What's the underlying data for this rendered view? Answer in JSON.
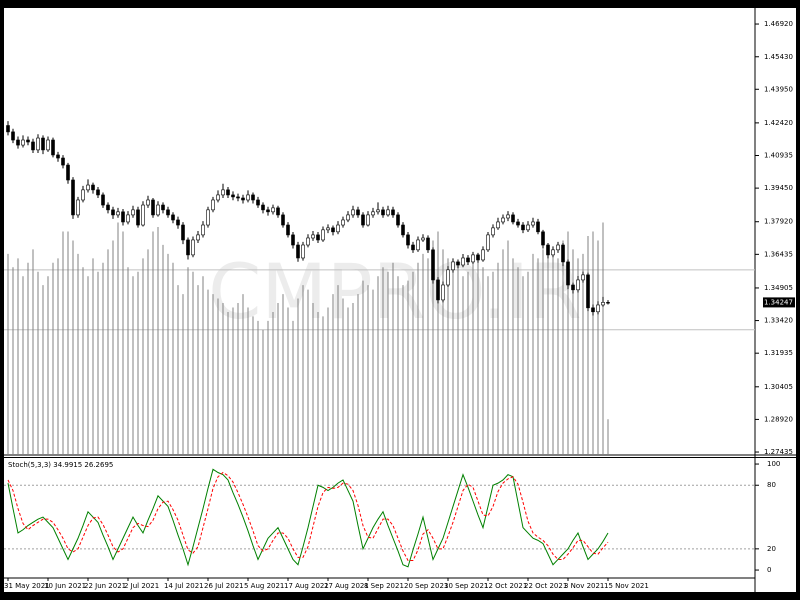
{
  "chart_data": [
    {
      "type": "candlestick",
      "watermark": "CMPRO.IR",
      "categories": [
        "31 May 2021",
        null,
        null,
        null,
        null,
        null,
        null,
        null,
        "10 Jun 2021",
        null,
        null,
        null,
        null,
        null,
        null,
        null,
        "22 Jun 2021",
        null,
        null,
        null,
        null,
        null,
        null,
        null,
        "2 Jul 2021",
        null,
        null,
        null,
        null,
        null,
        null,
        null,
        "14 Jul 2021",
        null,
        null,
        null,
        null,
        null,
        null,
        null,
        "26 Jul 2021",
        null,
        null,
        null,
        null,
        null,
        null,
        null,
        "5 Aug 2021",
        null,
        null,
        null,
        null,
        null,
        null,
        null,
        "17 Aug 2021",
        null,
        null,
        null,
        null,
        null,
        null,
        null,
        "27 Aug 2021",
        null,
        null,
        null,
        null,
        null,
        null,
        null,
        "8 Sep 2021",
        null,
        null,
        null,
        null,
        null,
        null,
        null,
        "20 Sep 2021",
        null,
        null,
        null,
        null,
        null,
        null,
        null,
        "30 Sep 2021",
        null,
        null,
        null,
        null,
        null,
        null,
        null,
        "12 Oct 2021",
        null,
        null,
        null,
        null,
        null,
        null,
        null,
        "22 Oct 2021",
        null,
        null,
        null,
        null,
        null,
        null,
        null,
        "3 Nov 2021",
        null,
        null,
        null,
        null,
        null,
        null,
        null,
        "15 Nov 2021"
      ],
      "open": [
        1.423,
        1.4201,
        1.4164,
        1.4141,
        1.4164,
        1.4155,
        1.4119,
        1.4173,
        1.4119,
        1.4164,
        1.4096,
        1.4082,
        1.405,
        1.3982,
        1.3823,
        1.3891,
        1.3937,
        1.3959,
        1.3937,
        1.3914,
        1.3868,
        1.3846,
        1.3823,
        1.3837,
        1.3791,
        1.3823,
        1.3846,
        1.3777,
        1.3868,
        1.3891,
        1.3823,
        1.3868,
        1.3846,
        1.3823,
        1.38,
        1.3777,
        1.3709,
        1.3641,
        1.3709,
        1.3732,
        1.3777,
        1.3846,
        1.3891,
        1.3914,
        1.3937,
        1.3914,
        1.3905,
        1.39,
        1.3891,
        1.3914,
        1.3891,
        1.3868,
        1.3846,
        1.3837,
        1.3855,
        1.3823,
        1.3777,
        1.3732,
        1.3686,
        1.3627,
        1.3686,
        1.3718,
        1.3732,
        1.3709,
        1.3755,
        1.3764,
        1.3746,
        1.3777,
        1.38,
        1.3823,
        1.3846,
        1.3823,
        1.3777,
        1.3823,
        1.3837,
        1.3846,
        1.3823,
        1.3846,
        1.3823,
        1.3777,
        1.3732,
        1.3686,
        1.3664,
        1.3709,
        1.3718,
        1.3664,
        1.3527,
        1.3436,
        1.3504,
        1.3573,
        1.3609,
        1.3595,
        1.3627,
        1.3609,
        1.3641,
        1.3618,
        1.3664,
        1.3732,
        1.3764,
        1.3791,
        1.3809,
        1.3823,
        1.3791,
        1.3777,
        1.3755,
        1.3777,
        1.3791,
        1.3746,
        1.3686,
        1.3641,
        1.3664,
        1.3686,
        1.3609,
        1.3504,
        1.3482,
        1.3527,
        1.355,
        1.34,
        1.3382,
        1.3413,
        1.3425
      ],
      "high": [
        1.425,
        1.4215,
        1.418,
        1.4185,
        1.418,
        1.417,
        1.419,
        1.4185,
        1.418,
        1.4175,
        1.411,
        1.4095,
        1.406,
        1.3995,
        1.3905,
        1.3955,
        1.3985,
        1.397,
        1.395,
        1.3925,
        1.388,
        1.386,
        1.3855,
        1.385,
        1.384,
        1.3865,
        1.386,
        1.3885,
        1.391,
        1.39,
        1.3885,
        1.388,
        1.386,
        1.3835,
        1.3815,
        1.379,
        1.372,
        1.3725,
        1.375,
        1.3795,
        1.386,
        1.3905,
        1.3935,
        1.3965,
        1.395,
        1.393,
        1.392,
        1.3915,
        1.3935,
        1.3925,
        1.3905,
        1.388,
        1.386,
        1.387,
        1.3865,
        1.3835,
        1.379,
        1.3745,
        1.37,
        1.37,
        1.3735,
        1.375,
        1.3745,
        1.377,
        1.378,
        1.3775,
        1.3795,
        1.3815,
        1.384,
        1.3865,
        1.386,
        1.3835,
        1.384,
        1.3855,
        1.388,
        1.386,
        1.3865,
        1.386,
        1.3835,
        1.379,
        1.3745,
        1.37,
        1.3725,
        1.3735,
        1.373,
        1.3675,
        1.354,
        1.352,
        1.359,
        1.3625,
        1.362,
        1.3645,
        1.364,
        1.3655,
        1.365,
        1.368,
        1.3745,
        1.378,
        1.381,
        1.3825,
        1.384,
        1.3835,
        1.3805,
        1.379,
        1.3795,
        1.381,
        1.3805,
        1.3755,
        1.3695,
        1.368,
        1.37,
        1.3695,
        1.362,
        1.3515,
        1.3545,
        1.3565,
        1.356,
        1.3415,
        1.343,
        1.345,
        1.3435
      ],
      "low": [
        1.4185,
        1.415,
        1.4125,
        1.413,
        1.414,
        1.4105,
        1.4105,
        1.41,
        1.411,
        1.4085,
        1.4065,
        1.4035,
        1.3965,
        1.3805,
        1.381,
        1.388,
        1.3925,
        1.392,
        1.39,
        1.3855,
        1.383,
        1.3805,
        1.381,
        1.3775,
        1.378,
        1.381,
        1.3765,
        1.377,
        1.3855,
        1.381,
        1.3815,
        1.383,
        1.381,
        1.3785,
        1.376,
        1.369,
        1.362,
        1.363,
        1.3695,
        1.372,
        1.3765,
        1.3835,
        1.388,
        1.39,
        1.39,
        1.389,
        1.3885,
        1.3875,
        1.388,
        1.3875,
        1.3855,
        1.383,
        1.382,
        1.3825,
        1.381,
        1.3765,
        1.372,
        1.367,
        1.361,
        1.3615,
        1.3675,
        1.3705,
        1.3695,
        1.37,
        1.374,
        1.373,
        1.3735,
        1.3765,
        1.379,
        1.381,
        1.381,
        1.3765,
        1.377,
        1.381,
        1.3825,
        1.381,
        1.3815,
        1.381,
        1.3765,
        1.372,
        1.367,
        1.365,
        1.3655,
        1.37,
        1.365,
        1.351,
        1.342,
        1.3425,
        1.3495,
        1.356,
        1.358,
        1.3585,
        1.3595,
        1.36,
        1.3605,
        1.361,
        1.3655,
        1.372,
        1.3755,
        1.378,
        1.3795,
        1.378,
        1.3765,
        1.374,
        1.3745,
        1.3765,
        1.3735,
        1.367,
        1.3625,
        1.363,
        1.365,
        1.359,
        1.3485,
        1.3465,
        1.347,
        1.3515,
        1.3385,
        1.3365,
        1.337,
        1.3405,
        1.3415
      ],
      "close": [
        1.4201,
        1.4164,
        1.4141,
        1.4164,
        1.4155,
        1.4119,
        1.4173,
        1.4119,
        1.4164,
        1.4096,
        1.4082,
        1.405,
        1.3982,
        1.3823,
        1.3891,
        1.3937,
        1.3959,
        1.3937,
        1.3914,
        1.3868,
        1.3846,
        1.3823,
        1.3837,
        1.3791,
        1.3823,
        1.3846,
        1.3777,
        1.3868,
        1.3891,
        1.3823,
        1.3868,
        1.3846,
        1.3823,
        1.38,
        1.3777,
        1.3709,
        1.3641,
        1.3709,
        1.3732,
        1.3777,
        1.3846,
        1.3891,
        1.3914,
        1.3937,
        1.3914,
        1.3905,
        1.39,
        1.3891,
        1.3914,
        1.3891,
        1.3868,
        1.3846,
        1.3837,
        1.3855,
        1.3823,
        1.3777,
        1.3732,
        1.3686,
        1.3627,
        1.3686,
        1.3718,
        1.3732,
        1.3709,
        1.3755,
        1.3764,
        1.3746,
        1.3777,
        1.38,
        1.3823,
        1.3846,
        1.3823,
        1.3777,
        1.3823,
        1.3837,
        1.3846,
        1.3823,
        1.3846,
        1.3823,
        1.3777,
        1.3732,
        1.3686,
        1.3664,
        1.3709,
        1.3718,
        1.3664,
        1.3527,
        1.3436,
        1.3504,
        1.3573,
        1.3609,
        1.3595,
        1.3627,
        1.3609,
        1.3641,
        1.3618,
        1.3664,
        1.3732,
        1.3764,
        1.3791,
        1.3809,
        1.3823,
        1.3791,
        1.3777,
        1.3755,
        1.3777,
        1.3791,
        1.3746,
        1.3686,
        1.3641,
        1.3664,
        1.3686,
        1.3609,
        1.3504,
        1.3482,
        1.3527,
        1.355,
        1.34,
        1.3382,
        1.3413,
        1.3425,
        1.34247
      ],
      "volume": [
        45,
        42,
        44,
        40,
        43,
        46,
        41,
        38,
        40,
        43,
        44,
        50,
        50,
        48,
        45,
        42,
        40,
        44,
        41,
        43,
        46,
        48,
        52,
        50,
        42,
        40,
        41,
        44,
        46,
        50,
        51,
        47,
        45,
        43,
        38,
        36,
        42,
        41,
        38,
        40,
        37,
        36,
        35,
        34,
        32,
        33,
        34,
        36,
        33,
        31,
        30,
        28,
        30,
        32,
        34,
        36,
        33,
        30,
        35,
        38,
        37,
        34,
        32,
        31,
        33,
        36,
        38,
        35,
        33,
        34,
        36,
        39,
        38,
        37,
        40,
        42,
        41,
        43,
        40,
        38,
        39,
        41,
        43,
        45,
        44,
        48,
        50,
        46,
        44,
        43,
        42,
        40,
        41,
        43,
        45,
        42,
        40,
        41,
        43,
        46,
        48,
        44,
        42,
        40,
        41,
        45,
        44,
        46,
        47,
        45,
        44,
        48,
        50,
        46,
        44,
        45,
        49,
        50,
        48,
        52,
        8
      ],
      "volume_ylim": [
        0,
        100
      ],
      "bull_color": "#ffffff",
      "bear_color": "#000000",
      "volume_color": "#808080",
      "ylim": [
        1.273,
        1.4765
      ],
      "yticks": [
        {
          "value": 1.4692,
          "label": "1.46920"
        },
        {
          "value": 1.4543,
          "label": "1.45430"
        },
        {
          "value": 1.4395,
          "label": "1.43950"
        },
        {
          "value": 1.4242,
          "label": "1.42420"
        },
        1.40935,
        {
          "value": 1.3945,
          "label": "1.39450"
        },
        {
          "value": 1.3792,
          "label": "1.37920"
        },
        1.36435,
        1.34905,
        {
          "value": 1.3342,
          "label": "1.33420"
        },
        1.31935,
        1.30405,
        {
          "value": 1.2892,
          "label": "1.28920"
        },
        1.27435
      ],
      "levels": [
        1.3573,
        1.33
      ],
      "last_price": 1.34247
    },
    {
      "type": "line",
      "title": "Stoch(5,3,3) 34.9915 26.2695",
      "series": [
        {
          "color": "#008000",
          "dash": false,
          "values": [
            82,
            58,
            35,
            38,
            42,
            45,
            48,
            50,
            45,
            40,
            30,
            20,
            10,
            20,
            30,
            42,
            55,
            50,
            45,
            33,
            22,
            10,
            20,
            30,
            40,
            50,
            42,
            35,
            47,
            58,
            70,
            65,
            60,
            47,
            33,
            20,
            5,
            22,
            40,
            58,
            77,
            95,
            92,
            90,
            85,
            73,
            62,
            50,
            37,
            23,
            10,
            20,
            30,
            35,
            40,
            30,
            20,
            10,
            5,
            22,
            40,
            60,
            80,
            78,
            75,
            78,
            82,
            85,
            75,
            65,
            42,
            20,
            30,
            40,
            48,
            55,
            42,
            30,
            18,
            5,
            3,
            19,
            34,
            50,
            30,
            10,
            20,
            30,
            45,
            60,
            75,
            90,
            78,
            65,
            52,
            40,
            60,
            80,
            82,
            85,
            90,
            88,
            64,
            40,
            35,
            30,
            28,
            25,
            15,
            5,
            10,
            15,
            20,
            28,
            35,
            22,
            10,
            15,
            20,
            27,
            34.9915
          ]
        },
        {
          "color": "#ff0000",
          "dash": true,
          "values": [
            85,
            75,
            58,
            44,
            38,
            42,
            45,
            48,
            48,
            45,
            38,
            30,
            20,
            17,
            20,
            31,
            42,
            49,
            50,
            43,
            33,
            22,
            17,
            20,
            30,
            40,
            44,
            42,
            41,
            47,
            58,
            64,
            65,
            57,
            47,
            33,
            19,
            16,
            22,
            40,
            58,
            77,
            88,
            92,
            89,
            83,
            73,
            62,
            50,
            37,
            23,
            18,
            20,
            28,
            35,
            35,
            30,
            20,
            12,
            12,
            22,
            41,
            60,
            73,
            78,
            77,
            78,
            82,
            81,
            75,
            61,
            42,
            31,
            30,
            39,
            48,
            48,
            42,
            30,
            18,
            9,
            9,
            19,
            34,
            38,
            30,
            20,
            20,
            32,
            45,
            60,
            75,
            81,
            78,
            65,
            52,
            51,
            60,
            74,
            82,
            86,
            88,
            81,
            64,
            46,
            35,
            31,
            28,
            23,
            15,
            10,
            10,
            15,
            21,
            28,
            28,
            22,
            16,
            15,
            21,
            26.2695
          ]
        }
      ],
      "ylim": [
        -7.5,
        105.7
      ],
      "yticks": [
        0,
        20,
        80,
        100
      ],
      "levels": [
        20,
        80
      ]
    }
  ]
}
